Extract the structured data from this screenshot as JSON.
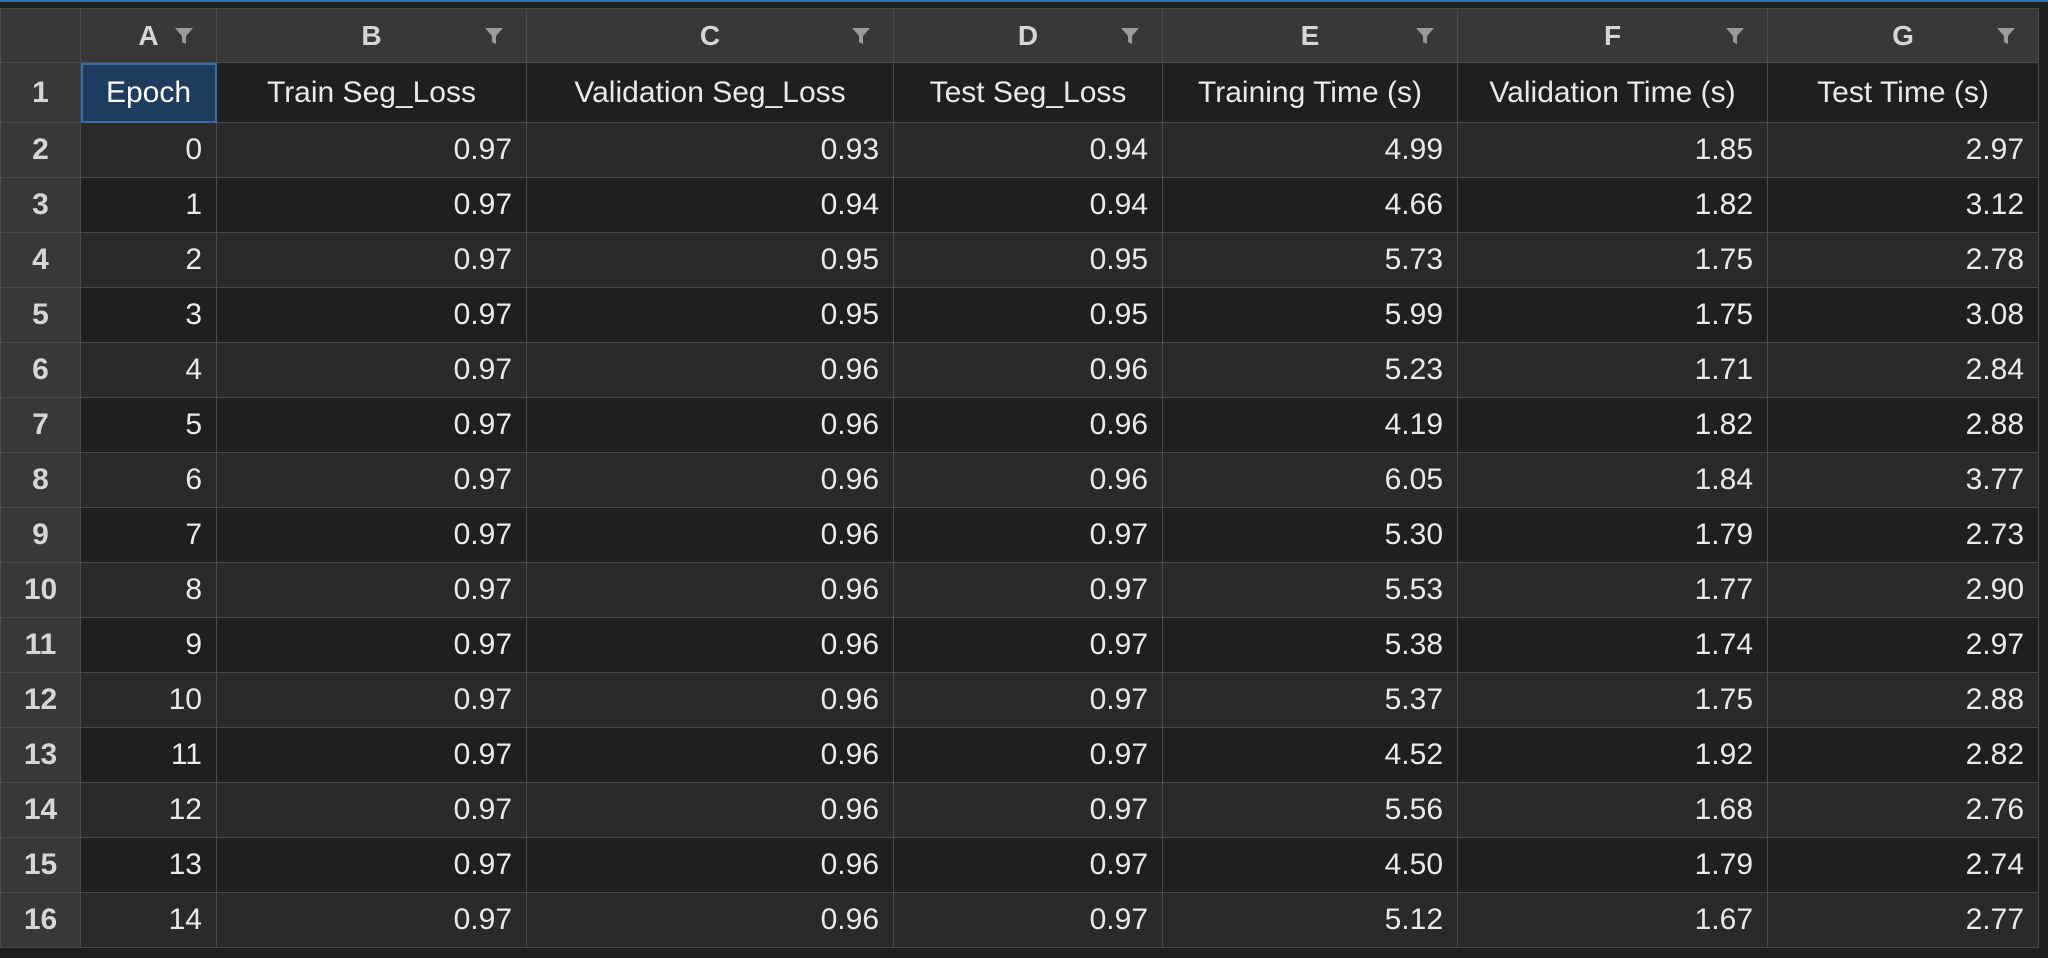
{
  "sheet": {
    "columns": [
      "A",
      "B",
      "C",
      "D",
      "E",
      "F",
      "G"
    ],
    "header_row_number": "1",
    "headers": [
      "Epoch",
      "Train Seg_Loss",
      "Validation Seg_Loss",
      "Test Seg_Loss",
      "Training Time (s)",
      "Validation Time (s)",
      "Test Time (s)"
    ],
    "rows": [
      {
        "num": "2",
        "cells": [
          "0",
          "0.97",
          "0.93",
          "0.94",
          "4.99",
          "1.85",
          "2.97"
        ]
      },
      {
        "num": "3",
        "cells": [
          "1",
          "0.97",
          "0.94",
          "0.94",
          "4.66",
          "1.82",
          "3.12"
        ]
      },
      {
        "num": "4",
        "cells": [
          "2",
          "0.97",
          "0.95",
          "0.95",
          "5.73",
          "1.75",
          "2.78"
        ]
      },
      {
        "num": "5",
        "cells": [
          "3",
          "0.97",
          "0.95",
          "0.95",
          "5.99",
          "1.75",
          "3.08"
        ]
      },
      {
        "num": "6",
        "cells": [
          "4",
          "0.97",
          "0.96",
          "0.96",
          "5.23",
          "1.71",
          "2.84"
        ]
      },
      {
        "num": "7",
        "cells": [
          "5",
          "0.97",
          "0.96",
          "0.96",
          "4.19",
          "1.82",
          "2.88"
        ]
      },
      {
        "num": "8",
        "cells": [
          "6",
          "0.97",
          "0.96",
          "0.96",
          "6.05",
          "1.84",
          "3.77"
        ]
      },
      {
        "num": "9",
        "cells": [
          "7",
          "0.97",
          "0.96",
          "0.97",
          "5.30",
          "1.79",
          "2.73"
        ]
      },
      {
        "num": "10",
        "cells": [
          "8",
          "0.97",
          "0.96",
          "0.97",
          "5.53",
          "1.77",
          "2.90"
        ]
      },
      {
        "num": "11",
        "cells": [
          "9",
          "0.97",
          "0.96",
          "0.97",
          "5.38",
          "1.74",
          "2.97"
        ]
      },
      {
        "num": "12",
        "cells": [
          "10",
          "0.97",
          "0.96",
          "0.97",
          "5.37",
          "1.75",
          "2.88"
        ]
      },
      {
        "num": "13",
        "cells": [
          "11",
          "0.97",
          "0.96",
          "0.97",
          "4.52",
          "1.92",
          "2.82"
        ]
      },
      {
        "num": "14",
        "cells": [
          "12",
          "0.97",
          "0.96",
          "0.97",
          "5.56",
          "1.68",
          "2.76"
        ]
      },
      {
        "num": "15",
        "cells": [
          "13",
          "0.97",
          "0.96",
          "0.97",
          "4.50",
          "1.79",
          "2.74"
        ]
      },
      {
        "num": "16",
        "cells": [
          "14",
          "0.97",
          "0.96",
          "0.97",
          "5.12",
          "1.67",
          "2.77"
        ]
      }
    ]
  },
  "icons": {
    "filter": "filter-funnel-icon"
  },
  "colors": {
    "selection_fill": "#1d3c5e",
    "selection_border": "#3a6ea5",
    "top_accent": "#2f6fb3"
  }
}
